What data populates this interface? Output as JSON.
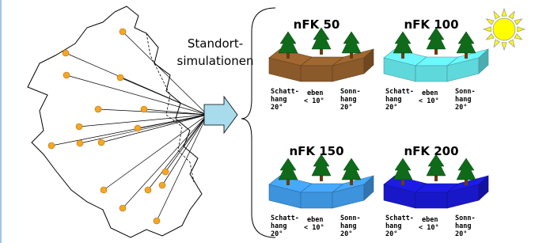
{
  "label": [
    "Standort-",
    "simulationen"
  ],
  "panels": [
    {
      "title": "nFK 50",
      "color": "#8b5a2b",
      "slopes": [
        {
          "name": [
            "Schatt-",
            "hang"
          ],
          "angle": "20°"
        },
        {
          "name": [
            "eben"
          ],
          "angle": "< 10°"
        },
        {
          "name": [
            "Sonn-",
            "hang"
          ],
          "angle": "20°"
        }
      ]
    },
    {
      "title": "nFK 100",
      "color": "#5fd8dc",
      "slopes": [
        {
          "name": [
            "Schatt-",
            "hang"
          ],
          "angle": "20°"
        },
        {
          "name": [
            "eben"
          ],
          "angle": "< 10°"
        },
        {
          "name": [
            "Sonn-",
            "hang"
          ],
          "angle": "20°"
        }
      ]
    },
    {
      "title": "nFK 150",
      "color": "#3d93dc",
      "slopes": [
        {
          "name": [
            "Schatt-",
            "hang"
          ],
          "angle": "20°"
        },
        {
          "name": [
            "eben"
          ],
          "angle": "< 10°"
        },
        {
          "name": [
            "Sonn-",
            "hang"
          ],
          "angle": "20°"
        }
      ]
    },
    {
      "title": "nFK 200",
      "color": "#1818c8",
      "slopes": [
        {
          "name": [
            "Schatt-",
            "hang"
          ],
          "angle": "20°"
        },
        {
          "name": [
            "eben"
          ],
          "angle": "< 10°"
        },
        {
          "name": [
            "Sonn-",
            "hang"
          ],
          "angle": "20°"
        }
      ]
    }
  ]
}
